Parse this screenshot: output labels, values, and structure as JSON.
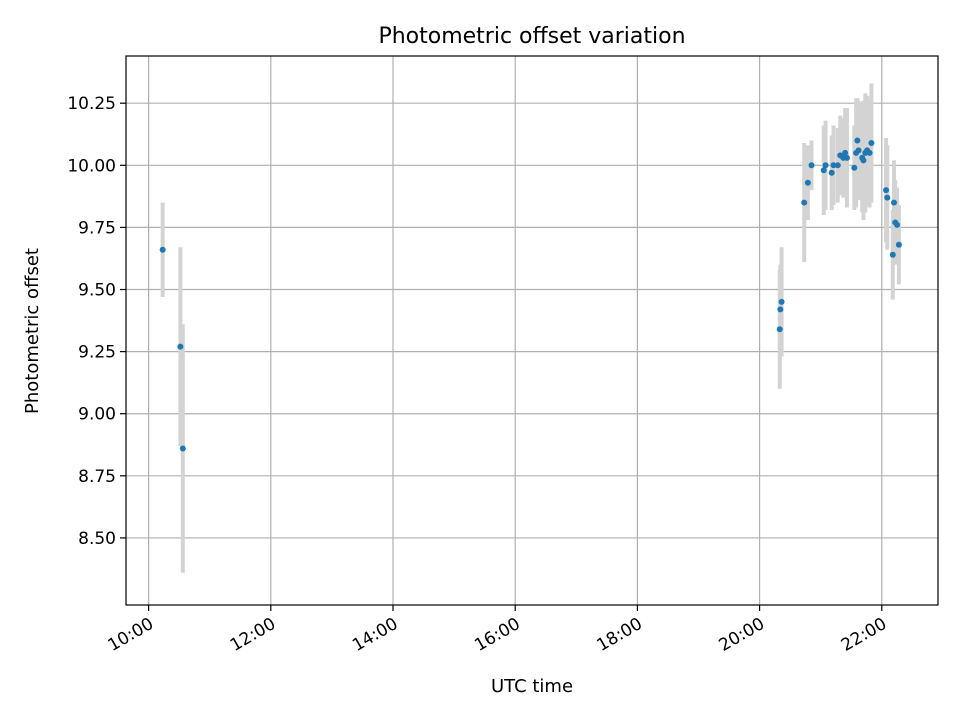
{
  "chart_data": {
    "type": "scatter",
    "title": "Photometric offset variation",
    "xlabel": "UTC time",
    "ylabel": "Photometric offset",
    "x_unit": "hours (UTC)",
    "xlim": [
      9.63,
      22.92
    ],
    "ylim": [
      8.23,
      10.44
    ],
    "x_ticks": [
      {
        "value": 10,
        "label": "10:00"
      },
      {
        "value": 12,
        "label": "12:00"
      },
      {
        "value": 14,
        "label": "14:00"
      },
      {
        "value": 16,
        "label": "16:00"
      },
      {
        "value": 18,
        "label": "18:00"
      },
      {
        "value": 20,
        "label": "20:00"
      },
      {
        "value": 22,
        "label": "22:00"
      }
    ],
    "y_ticks": [
      {
        "value": 8.5,
        "label": "8.50"
      },
      {
        "value": 8.75,
        "label": "8.75"
      },
      {
        "value": 9.0,
        "label": "9.00"
      },
      {
        "value": 9.25,
        "label": "9.25"
      },
      {
        "value": 9.5,
        "label": "9.50"
      },
      {
        "value": 9.75,
        "label": "9.75"
      },
      {
        "value": 10.0,
        "label": "10.00"
      },
      {
        "value": 10.25,
        "label": "10.25"
      }
    ],
    "grid": true,
    "legend": "none",
    "point_color": "#1f77b4",
    "errorbar_color": "#d3d3d3",
    "series": [
      {
        "points": [
          {
            "x": 10.23,
            "y": 9.66,
            "err": 0.19
          },
          {
            "x": 10.52,
            "y": 9.27,
            "err": 0.4
          },
          {
            "x": 10.56,
            "y": 8.86,
            "err": 0.5
          },
          {
            "x": 20.33,
            "y": 9.34,
            "err": 0.24
          },
          {
            "x": 20.34,
            "y": 9.42,
            "err": 0.18
          },
          {
            "x": 20.36,
            "y": 9.45,
            "err": 0.22
          },
          {
            "x": 20.73,
            "y": 9.85,
            "err": 0.24
          },
          {
            "x": 20.79,
            "y": 9.93,
            "err": 0.15
          },
          {
            "x": 20.85,
            "y": 10.0,
            "err": 0.1
          },
          {
            "x": 21.05,
            "y": 9.98,
            "err": 0.18
          },
          {
            "x": 21.08,
            "y": 10.0,
            "err": 0.18
          },
          {
            "x": 21.18,
            "y": 9.97,
            "err": 0.15
          },
          {
            "x": 21.21,
            "y": 10.0,
            "err": 0.16
          },
          {
            "x": 21.28,
            "y": 10.0,
            "err": 0.15
          },
          {
            "x": 21.32,
            "y": 10.04,
            "err": 0.16
          },
          {
            "x": 21.37,
            "y": 10.03,
            "err": 0.16
          },
          {
            "x": 21.4,
            "y": 10.05,
            "err": 0.18
          },
          {
            "x": 21.43,
            "y": 10.03,
            "err": 0.2
          },
          {
            "x": 21.55,
            "y": 9.99,
            "err": 0.17
          },
          {
            "x": 21.58,
            "y": 10.05,
            "err": 0.22
          },
          {
            "x": 21.6,
            "y": 10.1,
            "err": 0.17
          },
          {
            "x": 21.62,
            "y": 10.06,
            "err": 0.2
          },
          {
            "x": 21.68,
            "y": 10.03,
            "err": 0.22
          },
          {
            "x": 21.7,
            "y": 10.02,
            "err": 0.24
          },
          {
            "x": 21.73,
            "y": 10.05,
            "err": 0.24
          },
          {
            "x": 21.76,
            "y": 10.06,
            "err": 0.22
          },
          {
            "x": 21.8,
            "y": 10.05,
            "err": 0.22
          },
          {
            "x": 21.83,
            "y": 10.09,
            "err": 0.24
          },
          {
            "x": 22.07,
            "y": 9.9,
            "err": 0.21
          },
          {
            "x": 22.09,
            "y": 9.87,
            "err": 0.21
          },
          {
            "x": 22.18,
            "y": 9.64,
            "err": 0.18
          },
          {
            "x": 22.2,
            "y": 9.85,
            "err": 0.17
          },
          {
            "x": 22.22,
            "y": 9.77,
            "err": 0.17
          },
          {
            "x": 22.25,
            "y": 9.76,
            "err": 0.15
          },
          {
            "x": 22.28,
            "y": 9.68,
            "err": 0.16
          }
        ]
      }
    ]
  }
}
